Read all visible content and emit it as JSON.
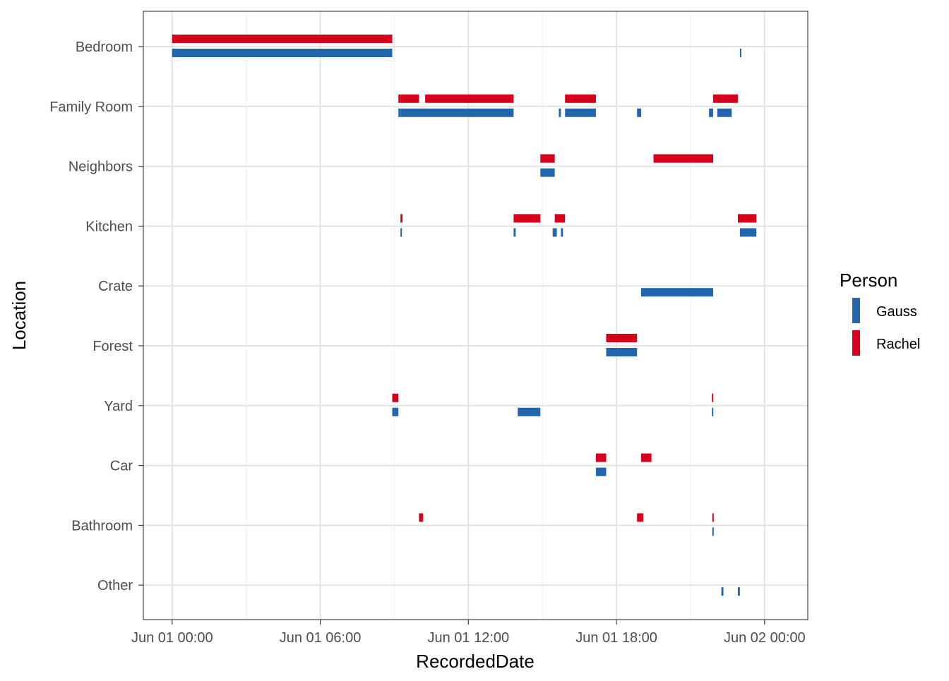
{
  "chart_data": {
    "type": "timeline",
    "xlabel": "RecordedDate",
    "ylabel": "Location",
    "x_range": [
      "2021-05-31T22:50",
      "2021-06-02T01:45"
    ],
    "x_ticks": [
      {
        "value": "2021-06-01T00:00",
        "label": "Jun 01 00:00"
      },
      {
        "value": "2021-06-01T06:00",
        "label": "Jun 01 06:00"
      },
      {
        "value": "2021-06-01T12:00",
        "label": "Jun 01 12:00"
      },
      {
        "value": "2021-06-01T18:00",
        "label": "Jun 01 18:00"
      },
      {
        "value": "2021-06-02T00:00",
        "label": "Jun 02 00:00"
      }
    ],
    "categories": [
      "Bedroom",
      "Family Room",
      "Neighbors",
      "Kitchen",
      "Crate",
      "Forest",
      "Yard",
      "Car",
      "Bathroom",
      "Other"
    ],
    "grid": true,
    "legend": {
      "title": "Person",
      "position": "right",
      "items": [
        {
          "name": "Gauss",
          "color": "#2166ac"
        },
        {
          "name": "Rachel",
          "color": "#d7001b"
        }
      ]
    },
    "series": [
      {
        "name": "Gauss",
        "color": "#2166ac",
        "intervals": [
          {
            "location": "Bedroom",
            "start": "2021-06-01T00:00",
            "end": "2021-06-01T08:55"
          },
          {
            "location": "Bedroom",
            "start": "2021-06-01T23:00",
            "end": "2021-06-01T23:02"
          },
          {
            "location": "Family Room",
            "start": "2021-06-01T09:10",
            "end": "2021-06-01T09:15"
          },
          {
            "location": "Family Room",
            "start": "2021-06-01T09:15",
            "end": "2021-06-01T13:50"
          },
          {
            "location": "Family Room",
            "start": "2021-06-01T15:40",
            "end": "2021-06-01T15:45"
          },
          {
            "location": "Family Room",
            "start": "2021-06-01T15:55",
            "end": "2021-06-01T17:10"
          },
          {
            "location": "Family Room",
            "start": "2021-06-01T18:50",
            "end": "2021-06-01T19:00"
          },
          {
            "location": "Family Room",
            "start": "2021-06-01T21:45",
            "end": "2021-06-01T21:55"
          },
          {
            "location": "Family Room",
            "start": "2021-06-01T22:05",
            "end": "2021-06-01T22:40"
          },
          {
            "location": "Neighbors",
            "start": "2021-06-01T14:55",
            "end": "2021-06-01T15:30"
          },
          {
            "location": "Kitchen",
            "start": "2021-06-01T09:15",
            "end": "2021-06-01T09:17"
          },
          {
            "location": "Kitchen",
            "start": "2021-06-01T13:50",
            "end": "2021-06-01T13:55"
          },
          {
            "location": "Kitchen",
            "start": "2021-06-01T15:25",
            "end": "2021-06-01T15:35"
          },
          {
            "location": "Kitchen",
            "start": "2021-06-01T15:45",
            "end": "2021-06-01T15:50"
          },
          {
            "location": "Kitchen",
            "start": "2021-06-01T23:00",
            "end": "2021-06-01T23:40"
          },
          {
            "location": "Crate",
            "start": "2021-06-01T19:00",
            "end": "2021-06-01T21:55"
          },
          {
            "location": "Forest",
            "start": "2021-06-01T17:35",
            "end": "2021-06-01T18:50"
          },
          {
            "location": "Yard",
            "start": "2021-06-01T08:55",
            "end": "2021-06-01T09:10"
          },
          {
            "location": "Yard",
            "start": "2021-06-01T14:00",
            "end": "2021-06-01T14:55"
          },
          {
            "location": "Yard",
            "start": "2021-06-01T21:52",
            "end": "2021-06-01T21:54"
          },
          {
            "location": "Car",
            "start": "2021-06-01T17:10",
            "end": "2021-06-01T17:35"
          },
          {
            "location": "Bathroom",
            "start": "2021-06-01T21:53",
            "end": "2021-06-01T21:55"
          },
          {
            "location": "Other",
            "start": "2021-06-01T22:15",
            "end": "2021-06-01T22:20"
          },
          {
            "location": "Other",
            "start": "2021-06-01T22:55",
            "end": "2021-06-01T23:00"
          }
        ]
      },
      {
        "name": "Rachel",
        "color": "#d7001b",
        "intervals": [
          {
            "location": "Bedroom",
            "start": "2021-06-01T00:00",
            "end": "2021-06-01T08:55"
          },
          {
            "location": "Family Room",
            "start": "2021-06-01T09:10",
            "end": "2021-06-01T09:15"
          },
          {
            "location": "Family Room",
            "start": "2021-06-01T09:15",
            "end": "2021-06-01T10:00"
          },
          {
            "location": "Family Room",
            "start": "2021-06-01T10:15",
            "end": "2021-06-01T13:50"
          },
          {
            "location": "Family Room",
            "start": "2021-06-01T15:55",
            "end": "2021-06-01T17:10"
          },
          {
            "location": "Family Room",
            "start": "2021-06-01T21:55",
            "end": "2021-06-01T22:55"
          },
          {
            "location": "Neighbors",
            "start": "2021-06-01T14:55",
            "end": "2021-06-01T15:30"
          },
          {
            "location": "Neighbors",
            "start": "2021-06-01T19:30",
            "end": "2021-06-01T21:55"
          },
          {
            "location": "Kitchen",
            "start": "2021-06-01T09:15",
            "end": "2021-06-01T09:20"
          },
          {
            "location": "Kitchen",
            "start": "2021-06-01T13:50",
            "end": "2021-06-01T14:55"
          },
          {
            "location": "Kitchen",
            "start": "2021-06-01T15:30",
            "end": "2021-06-01T15:55"
          },
          {
            "location": "Kitchen",
            "start": "2021-06-01T22:55",
            "end": "2021-06-01T23:40"
          },
          {
            "location": "Forest",
            "start": "2021-06-01T17:35",
            "end": "2021-06-01T18:50"
          },
          {
            "location": "Yard",
            "start": "2021-06-01T08:55",
            "end": "2021-06-01T09:10"
          },
          {
            "location": "Yard",
            "start": "2021-06-01T21:52",
            "end": "2021-06-01T21:54"
          },
          {
            "location": "Car",
            "start": "2021-06-01T17:10",
            "end": "2021-06-01T17:35"
          },
          {
            "location": "Car",
            "start": "2021-06-01T19:00",
            "end": "2021-06-01T19:25"
          },
          {
            "location": "Bathroom",
            "start": "2021-06-01T10:00",
            "end": "2021-06-01T10:10"
          },
          {
            "location": "Bathroom",
            "start": "2021-06-01T18:50",
            "end": "2021-06-01T19:05"
          },
          {
            "location": "Bathroom",
            "start": "2021-06-01T21:53",
            "end": "2021-06-01T21:55"
          }
        ]
      }
    ]
  }
}
